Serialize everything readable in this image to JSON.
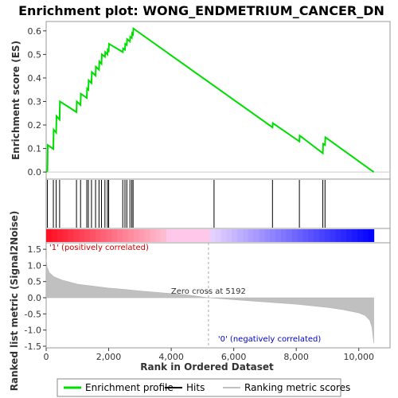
{
  "chart_data": {
    "type": "line",
    "title": "Enrichment plot: WONG_ENDMETRIUM_CANCER_DN",
    "top_panel": {
      "ylabel": "Enrichment score (ES)",
      "ylim": [
        -0.03,
        0.64
      ],
      "yticks": [
        "0.0",
        "0.1",
        "0.2",
        "0.3",
        "0.4",
        "0.5",
        "0.6"
      ],
      "ytick_values": [
        0.0,
        0.1,
        0.2,
        0.3,
        0.4,
        0.5,
        0.6
      ],
      "series": [
        {
          "name": "Enrichment profile",
          "color": "#00dd00",
          "points": [
            [
              0,
              0.0
            ],
            [
              40,
              0.005
            ],
            [
              50,
              0.115
            ],
            [
              230,
              0.098
            ],
            [
              240,
              0.18
            ],
            [
              320,
              0.168
            ],
            [
              330,
              0.238
            ],
            [
              430,
              0.223
            ],
            [
              440,
              0.3
            ],
            [
              970,
              0.255
            ],
            [
              980,
              0.3
            ],
            [
              1100,
              0.285
            ],
            [
              1110,
              0.333
            ],
            [
              1300,
              0.315
            ],
            [
              1310,
              0.355
            ],
            [
              1350,
              0.35
            ],
            [
              1360,
              0.39
            ],
            [
              1450,
              0.378
            ],
            [
              1460,
              0.425
            ],
            [
              1580,
              0.41
            ],
            [
              1590,
              0.448
            ],
            [
              1690,
              0.435
            ],
            [
              1700,
              0.47
            ],
            [
              1770,
              0.46
            ],
            [
              1780,
              0.5
            ],
            [
              1880,
              0.49
            ],
            [
              1890,
              0.51
            ],
            [
              1960,
              0.5
            ],
            [
              1970,
              0.52
            ],
            [
              2000,
              0.515
            ],
            [
              2010,
              0.545
            ],
            [
              2450,
              0.51
            ],
            [
              2460,
              0.525
            ],
            [
              2520,
              0.52
            ],
            [
              2530,
              0.545
            ],
            [
              2580,
              0.54
            ],
            [
              2590,
              0.565
            ],
            [
              2680,
              0.555
            ],
            [
              2690,
              0.575
            ],
            [
              2740,
              0.57
            ],
            [
              2750,
              0.59
            ],
            [
              2780,
              0.585
            ],
            [
              2790,
              0.61
            ],
            [
              7240,
              0.19
            ],
            [
              7250,
              0.208
            ],
            [
              8100,
              0.13
            ],
            [
              8110,
              0.155
            ],
            [
              8850,
              0.08
            ],
            [
              8860,
              0.12
            ],
            [
              8920,
              0.115
            ],
            [
              8930,
              0.148
            ],
            [
              10480,
              0.0
            ]
          ]
        }
      ]
    },
    "hits": [
      40,
      230,
      320,
      430,
      970,
      1100,
      1300,
      1350,
      1450,
      1580,
      1690,
      1770,
      1880,
      1960,
      2000,
      2450,
      2520,
      2580,
      2680,
      2740,
      2780,
      5370,
      7240,
      8100,
      8850,
      8920
    ],
    "bottom_panel": {
      "ylabel": "Ranked list metric (Signal2Noise)",
      "xlabel": "Rank in Ordered Dataset",
      "ylim": [
        -1.55,
        1.7
      ],
      "yticks": [
        "1.5",
        "1.0",
        "0.5",
        "0.0",
        "-0.5",
        "-1.0",
        "-1.5"
      ],
      "ytick_values": [
        1.5,
        1.0,
        0.5,
        0.0,
        -0.5,
        -1.0,
        -1.5
      ],
      "xlim": [
        0,
        11000
      ],
      "xticks": [
        "0",
        "2,000",
        "4,000",
        "6,000",
        "8,000",
        "10,000"
      ],
      "xtick_values": [
        0,
        2000,
        4000,
        6000,
        8000,
        10000
      ],
      "metric_curve": [
        [
          0,
          1.2
        ],
        [
          30,
          0.95
        ],
        [
          100,
          0.78
        ],
        [
          250,
          0.65
        ],
        [
          500,
          0.55
        ],
        [
          1000,
          0.42
        ],
        [
          1500,
          0.36
        ],
        [
          2000,
          0.3
        ],
        [
          2500,
          0.26
        ],
        [
          3000,
          0.21
        ],
        [
          3500,
          0.17
        ],
        [
          4000,
          0.13
        ],
        [
          4500,
          0.09
        ],
        [
          5192,
          0.0
        ],
        [
          6000,
          -0.06
        ],
        [
          7000,
          -0.13
        ],
        [
          8000,
          -0.2
        ],
        [
          8500,
          -0.25
        ],
        [
          9000,
          -0.3
        ],
        [
          9500,
          -0.37
        ],
        [
          10000,
          -0.47
        ],
        [
          10200,
          -0.55
        ],
        [
          10350,
          -0.7
        ],
        [
          10420,
          -0.9
        ],
        [
          10480,
          -1.4
        ]
      ],
      "zero_cross_rank": 5192,
      "zero_cross_label": "Zero cross at 5192",
      "pos_label": "'1' (positively correlated)",
      "neg_label": "'0' (negatively correlated)"
    },
    "n_genes": 10480,
    "colors": {
      "profile": "#00dd00",
      "hit": "#000000",
      "metric_fill": "#c0c0c0",
      "pos_label": "#cc0000",
      "neg_label": "#0000cc"
    },
    "legend": [
      {
        "name": "Enrichment profile",
        "color": "#00dd00"
      },
      {
        "name": "Hits",
        "color": "#000000"
      },
      {
        "name": "Ranking metric scores",
        "color": "#c0c0c0"
      }
    ]
  }
}
